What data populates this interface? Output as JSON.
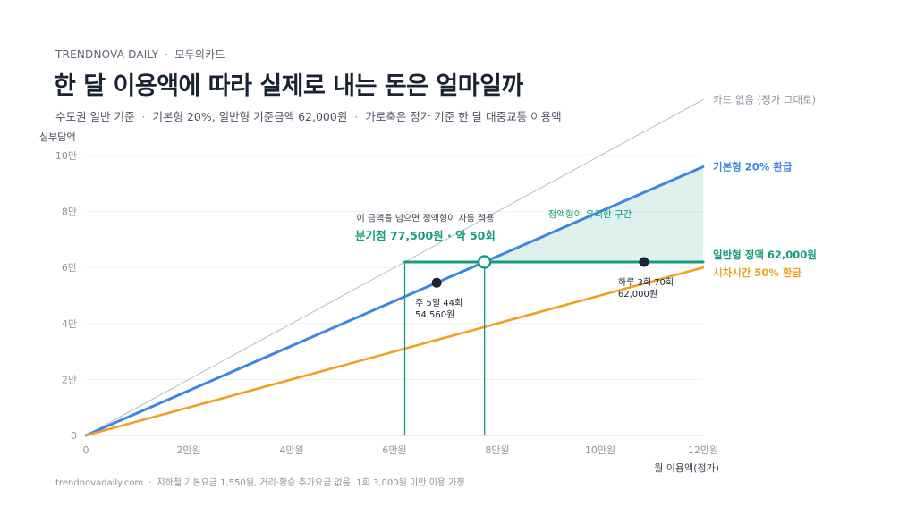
{
  "header": {
    "brand": "TRENDNOVA DAILY",
    "brand_partner": "모두의카드",
    "title": "한 달 이용액에 따라 실제로 내는 돈은 얼마일까",
    "subtitle_parts": [
      "수도권 일반 기준",
      "기본형 20%, 일반형 기준금액 62,000원",
      "가로축은 정가 기준 한 달 대중교통 이용액"
    ]
  },
  "footer": {
    "site": "trendnovadaily.com",
    "note": "지하철 기본요금 1,550원, 거리·환승 추가요금 없음, 1회 3,000원 미만 이용 가정"
  },
  "chart_data": {
    "type": "line",
    "xlabel": "월 이용액(정가)",
    "ylabel": "실부담액",
    "xlim": [
      0,
      120000
    ],
    "ylim": [
      0,
      100000
    ],
    "x_ticks": [
      0,
      20000,
      40000,
      60000,
      80000,
      100000,
      120000
    ],
    "x_tick_labels": [
      "0",
      "2만원",
      "4만원",
      "6만원",
      "8만원",
      "10만원",
      "12만원"
    ],
    "y_ticks": [
      0,
      20000,
      40000,
      60000,
      80000,
      100000
    ],
    "y_tick_labels": [
      "0",
      "2만",
      "4만",
      "6만",
      "8만",
      "10만"
    ],
    "grid": true,
    "series": [
      {
        "name": "카드 없음 (정가 그대로)",
        "color": "#b8bcc4",
        "points": [
          [
            0,
            0
          ],
          [
            120000,
            120000
          ]
        ]
      },
      {
        "name": "기본형 20% 환급",
        "color": "#3d86e6",
        "points": [
          [
            0,
            0
          ],
          [
            120000,
            96000
          ]
        ]
      },
      {
        "name": "시차시간 50% 환급",
        "color": "#f0a020",
        "points": [
          [
            0,
            0
          ],
          [
            120000,
            60000
          ]
        ]
      },
      {
        "name": "일반형 정액 62,000원",
        "color": "#169a7c",
        "points": [
          [
            62000,
            62000
          ],
          [
            120000,
            62000
          ]
        ]
      }
    ],
    "shaded_region": {
      "label": "정액형이 유리한 구간",
      "color": "#169a7c",
      "from_x": 77500,
      "to_x": 120000
    },
    "breakeven": {
      "x": 77500,
      "y": 62000,
      "note": "이 금액을 넘으면 정액형이 자동 적용",
      "label": "분기점 77,500원 · 약 50회"
    },
    "points": [
      {
        "x": 68200,
        "y": 54560,
        "label_lines": [
          "주 5일 44회",
          "54,560원"
        ]
      },
      {
        "x": 108500,
        "y": 62000,
        "label_lines": [
          "하루 3회 70회",
          "62,000원"
        ]
      }
    ]
  }
}
